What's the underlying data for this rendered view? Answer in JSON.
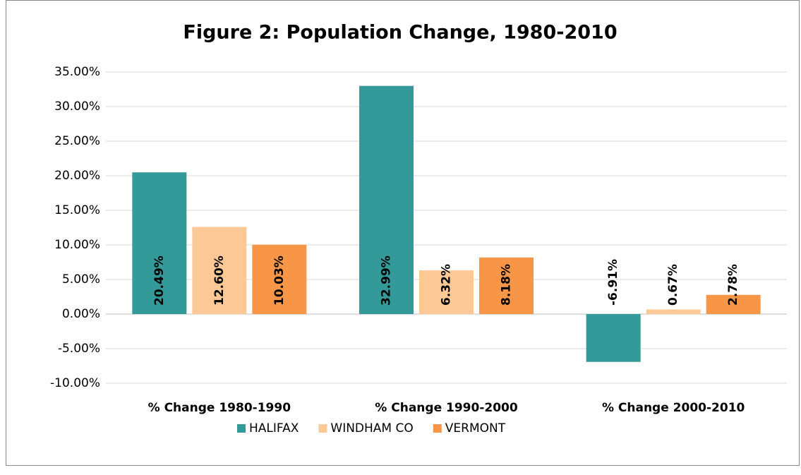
{
  "chart_data": {
    "type": "bar",
    "title": "Figure 2: Population Change, 1980-2010",
    "categories": [
      "% Change 1980-1990",
      "% Change 1990-2000",
      "% Change 2000-2010"
    ],
    "series": [
      {
        "name": "HALIFAX",
        "color": "#339999",
        "values": [
          20.49,
          32.99,
          -6.91
        ],
        "value_labels": [
          "20.49%",
          "32.99%",
          "-6.91%"
        ]
      },
      {
        "name": "WINDHAM CO",
        "color": "#fcc896",
        "values": [
          12.6,
          6.32,
          0.67
        ],
        "value_labels": [
          "12.60%",
          "6.32%",
          "0.67%"
        ]
      },
      {
        "name": "VERMONT",
        "color": "#f79646",
        "values": [
          10.03,
          8.18,
          2.78
        ],
        "value_labels": [
          "10.03%",
          "8.18%",
          "2.78%"
        ]
      }
    ],
    "ylim": [
      -10,
      35
    ],
    "yticks": [
      {
        "value": -10,
        "label": "-10.00%"
      },
      {
        "value": -5,
        "label": "-5.00%"
      },
      {
        "value": 0,
        "label": "0.00%"
      },
      {
        "value": 5,
        "label": "5.00%"
      },
      {
        "value": 10,
        "label": "10.00%"
      },
      {
        "value": 15,
        "label": "15.00%"
      },
      {
        "value": 20,
        "label": "20.00%"
      },
      {
        "value": 25,
        "label": "25.00%"
      },
      {
        "value": 30,
        "label": "30.00%"
      },
      {
        "value": 35,
        "label": "35.00%"
      }
    ],
    "grid": true,
    "legend": "bottom"
  }
}
